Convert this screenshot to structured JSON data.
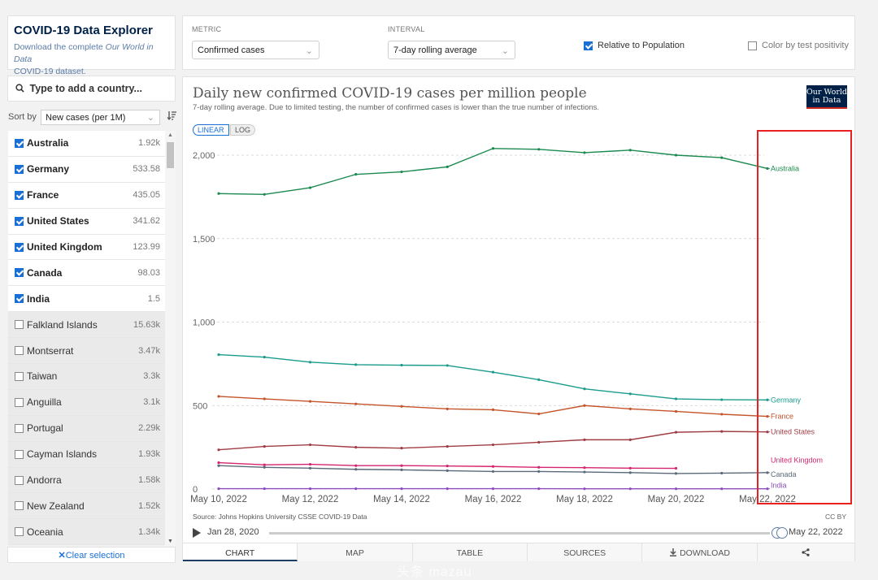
{
  "explorer": {
    "title": "COVID-19 Data Explorer",
    "description_prefix": "Download the complete ",
    "description_em": "Our World in Data",
    "description_link": "COVID-19 dataset."
  },
  "search": {
    "label": "Type to add a country..."
  },
  "sort": {
    "label": "Sort by",
    "value": "New cases (per 1M)"
  },
  "countries": [
    {
      "name": "Australia",
      "value": "1.92k",
      "selected": true
    },
    {
      "name": "Germany",
      "value": "533.58",
      "selected": true
    },
    {
      "name": "France",
      "value": "435.05",
      "selected": true
    },
    {
      "name": "United States",
      "value": "341.62",
      "selected": true
    },
    {
      "name": "United Kingdom",
      "value": "123.99",
      "selected": true
    },
    {
      "name": "Canada",
      "value": "98.03",
      "selected": true
    },
    {
      "name": "India",
      "value": "1.5",
      "selected": true
    },
    {
      "name": "Falkland Islands",
      "value": "15.63k",
      "selected": false
    },
    {
      "name": "Montserrat",
      "value": "3.47k",
      "selected": false
    },
    {
      "name": "Taiwan",
      "value": "3.3k",
      "selected": false
    },
    {
      "name": "Anguilla",
      "value": "3.1k",
      "selected": false
    },
    {
      "name": "Portugal",
      "value": "2.29k",
      "selected": false
    },
    {
      "name": "Cayman Islands",
      "value": "1.93k",
      "selected": false
    },
    {
      "name": "Andorra",
      "value": "1.58k",
      "selected": false
    },
    {
      "name": "New Zealand",
      "value": "1.52k",
      "selected": false
    },
    {
      "name": "Oceania",
      "value": "1.34k",
      "selected": false
    }
  ],
  "clear_selection": "Clear selection",
  "controls": {
    "metric_label": "METRIC",
    "metric_value": "Confirmed cases",
    "interval_label": "INTERVAL",
    "interval_value": "7-day rolling average",
    "relative_label": "Relative to Population",
    "relative_checked": true,
    "positivity_label": "Color by test positivity",
    "positivity_checked": false
  },
  "chart": {
    "title": "Daily new confirmed COVID-19 cases per million people",
    "subtitle": "7-day rolling average. Due to limited testing, the number of confirmed cases is lower than the true number of infections.",
    "logo_line1": "Our World",
    "logo_line2": "in Data",
    "scale_linear": "LINEAR",
    "scale_log": "LOG",
    "source": "Source: Johns Hopkins University CSSE COVID-19 Data",
    "license": "CC BY",
    "timeline_start": "Jan 28, 2020",
    "timeline_end": "May 22, 2022"
  },
  "chart_data": {
    "type": "line",
    "title": "Daily new confirmed COVID-19 cases per million people",
    "ylim": [
      0,
      2000
    ],
    "y_ticks": [
      "0",
      "500",
      "1,000",
      "1,500",
      "2,000"
    ],
    "y_tick_values": [
      0,
      500,
      1000,
      1500,
      2000
    ],
    "x_ticks": [
      "May 10, 2022",
      "May 12, 2022",
      "May 14, 2022",
      "May 16, 2022",
      "May 18, 2022",
      "May 20, 2022",
      "May 22, 2022"
    ],
    "x_day_numbers": [
      10,
      11,
      12,
      13,
      14,
      15,
      16,
      17,
      18,
      19,
      20,
      21,
      22
    ],
    "x_range_days": [
      10,
      22
    ],
    "grid": true,
    "series": [
      {
        "name": "Australia",
        "color": "#1b8a4f",
        "values": [
          1770,
          1765,
          1805,
          1885,
          1900,
          1930,
          2040,
          2035,
          2015,
          2030,
          2000,
          1985,
          1920
        ]
      },
      {
        "name": "Germany",
        "color": "#1a9b8c",
        "values": [
          805,
          790,
          760,
          745,
          742,
          740,
          700,
          655,
          600,
          570,
          540,
          535,
          534
        ]
      },
      {
        "name": "France",
        "color": "#c4542a",
        "values": [
          555,
          540,
          525,
          510,
          495,
          480,
          475,
          450,
          500,
          480,
          465,
          448,
          435
        ]
      },
      {
        "name": "United States",
        "color": "#a03c44",
        "values": [
          235,
          255,
          265,
          250,
          245,
          255,
          265,
          280,
          295,
          295,
          340,
          345,
          342
        ]
      },
      {
        "name": "United Kingdom",
        "color": "#d6246e",
        "values": [
          158,
          145,
          148,
          140,
          140,
          138,
          135,
          130,
          128,
          125,
          124
        ]
      },
      {
        "name": "Canada",
        "color": "#5a6a7a",
        "values": [
          140,
          130,
          125,
          118,
          115,
          110,
          105,
          105,
          102,
          98,
          93,
          95,
          98
        ]
      },
      {
        "name": "India",
        "color": "#8a4fbf",
        "values": [
          2,
          2,
          2,
          2,
          2,
          2,
          2,
          2,
          1.5,
          1.5,
          1.5,
          1.5,
          1.5
        ]
      }
    ]
  },
  "tabs": [
    "CHART",
    "MAP",
    "TABLE",
    "SOURCES",
    "DOWNLOAD",
    "share"
  ],
  "watermark": "头条 mazau"
}
